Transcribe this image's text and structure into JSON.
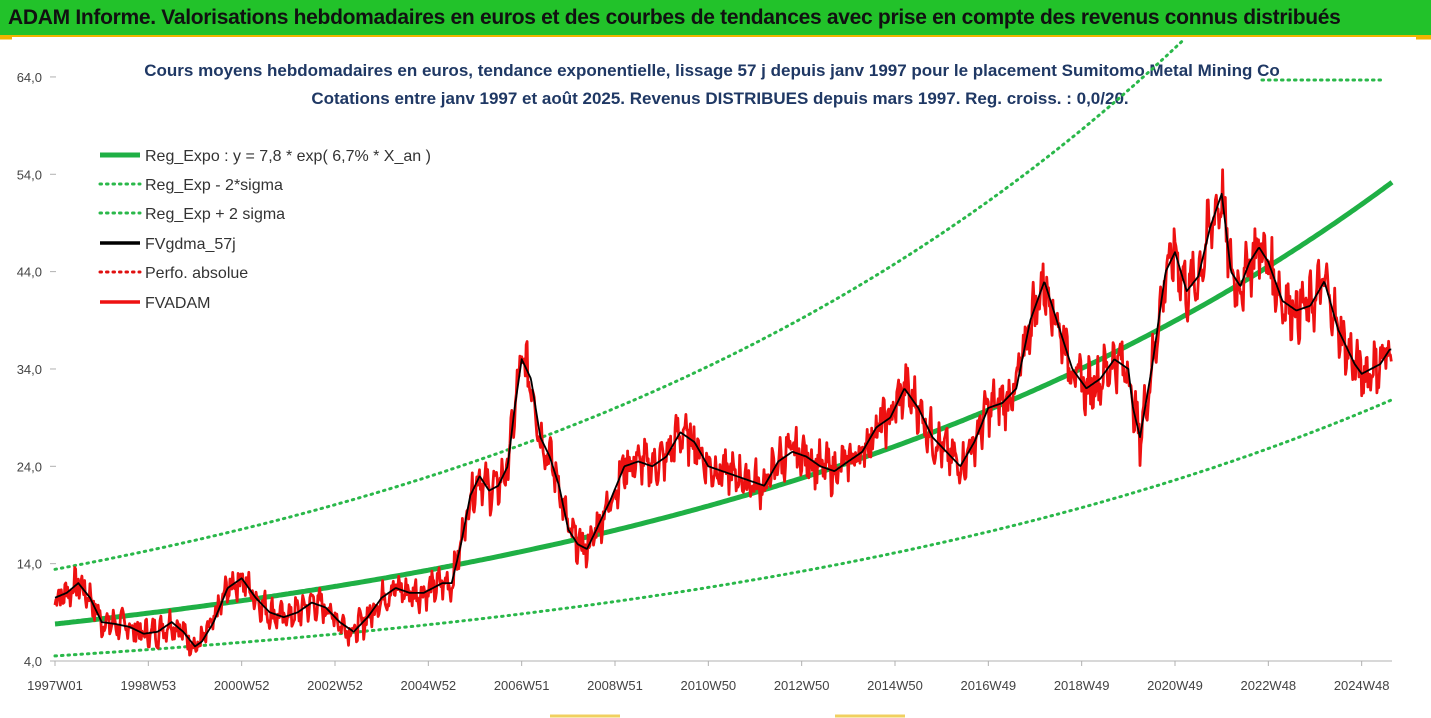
{
  "banner": {
    "title": "ADAM Informe. Valorisations hebdomadaires en euros et des courbes de tendances avec prise en compte des revenus connus distribués"
  },
  "chart_data": {
    "type": "line",
    "title": "Cours moyens hebdomadaires en euros, tendance exponentielle, lissage 57 j depuis janv 1997  pour le placement Sumitomo Metal Mining Co",
    "subtitle": "Cotations entre janv 1997 et août 2025.  Revenus DISTRIBUES depuis mars 1997. Reg. croiss. : 0,0/20.",
    "xlabel": "",
    "ylabel": "",
    "ylim": [
      4,
      68
    ],
    "xlim": [
      1997.0,
      2025.65
    ],
    "y_ticks": [
      "4,0",
      "14,0",
      "24,0",
      "34,0",
      "44,0",
      "54,0",
      "64,0"
    ],
    "x_ticks": [
      "1997W01",
      "1998W53",
      "2000W52",
      "2002W52",
      "2004W52",
      "2006W51",
      "2008W51",
      "2010W50",
      "2012W50",
      "2014W50",
      "2016W49",
      "2018W49",
      "2020W49",
      "2022W48",
      "2024W48"
    ],
    "x_tick_years": [
      1997.0,
      1999.0,
      2001.0,
      2003.0,
      2005.0,
      2007.0,
      2009.0,
      2011.0,
      2013.0,
      2015.0,
      2017.0,
      2019.0,
      2021.0,
      2023.0,
      2025.0
    ],
    "grid": false,
    "legend_position": "top-left",
    "trend": {
      "a": 7.8,
      "rate": 0.067,
      "sigma_factor_low": 0.58,
      "sigma_factor_high": 1.72
    },
    "series": [
      {
        "name": "Reg_Expo : y = 7,8 * exp( 6,7% *  X_an )",
        "color": "#1fb045",
        "style": "solid"
      },
      {
        "name": "Reg_Exp - 2*sigma",
        "color": "#2ab84a",
        "style": "dotted"
      },
      {
        "name": "Reg_Exp + 2 sigma",
        "color": "#2ab84a",
        "style": "dotted"
      },
      {
        "name": "FVgdma_57j",
        "color": "#000000",
        "style": "solid"
      },
      {
        "name": "Perfo. absolue",
        "color": "#e01010",
        "style": "dotted"
      },
      {
        "name": "FVADAM",
        "color": "#ee1111",
        "style": "solid"
      }
    ],
    "price_points": {
      "x": [
        1997.0,
        1997.25,
        1997.5,
        1997.75,
        1998.0,
        1998.3,
        1998.6,
        1998.9,
        1999.2,
        1999.5,
        1999.75,
        2000.0,
        2000.15,
        2000.4,
        2000.7,
        2001.0,
        2001.3,
        2001.6,
        2001.9,
        2002.2,
        2002.5,
        2002.8,
        2003.1,
        2003.4,
        2003.7,
        2004.0,
        2004.3,
        2004.6,
        2004.9,
        2005.1,
        2005.3,
        2005.5,
        2005.7,
        2005.9,
        2006.1,
        2006.3,
        2006.5,
        2006.7,
        2006.85,
        2007.0,
        2007.2,
        2007.4,
        2007.6,
        2007.8,
        2008.0,
        2008.2,
        2008.4,
        2008.6,
        2008.9,
        2009.2,
        2009.5,
        2009.8,
        2010.1,
        2010.4,
        2010.7,
        2011.0,
        2011.3,
        2011.6,
        2011.9,
        2012.2,
        2012.5,
        2012.8,
        2013.1,
        2013.4,
        2013.7,
        2014.0,
        2014.3,
        2014.6,
        2014.9,
        2015.2,
        2015.5,
        2015.8,
        2016.1,
        2016.4,
        2016.7,
        2017.0,
        2017.3,
        2017.6,
        2017.9,
        2018.2,
        2018.5,
        2018.8,
        2019.1,
        2019.4,
        2019.7,
        2020.0,
        2020.1,
        2020.25,
        2020.5,
        2020.8,
        2021.0,
        2021.25,
        2021.5,
        2021.75,
        2022.0,
        2022.2,
        2022.4,
        2022.6,
        2022.8,
        2023.0,
        2023.3,
        2023.6,
        2023.9,
        2024.2,
        2024.5,
        2024.7,
        2024.85,
        2025.0,
        2025.2,
        2025.4,
        2025.6
      ],
      "y": [
        10.5,
        11.0,
        12.0,
        10.5,
        8.0,
        7.8,
        7.5,
        6.8,
        7.0,
        8.0,
        7.0,
        5.5,
        6.0,
        8.0,
        11.5,
        12.5,
        10.5,
        9.0,
        8.5,
        9.0,
        10.0,
        9.5,
        8.0,
        7.0,
        8.5,
        10.5,
        11.5,
        11.0,
        11.0,
        11.5,
        12.0,
        12.0,
        16.0,
        21.0,
        23.0,
        21.5,
        22.0,
        24.0,
        30.0,
        35.0,
        33.0,
        27.0,
        25.0,
        22.0,
        17.5,
        16.0,
        15.5,
        17.5,
        20.5,
        24.0,
        24.5,
        24.0,
        25.0,
        27.5,
        26.5,
        24.0,
        23.5,
        23.0,
        22.5,
        22.0,
        24.5,
        25.5,
        25.0,
        24.0,
        23.5,
        24.5,
        25.5,
        28.0,
        29.0,
        32.0,
        30.0,
        27.0,
        25.5,
        24.0,
        26.5,
        30.0,
        30.5,
        32.0,
        39.0,
        43.0,
        38.5,
        34.0,
        32.0,
        33.0,
        35.0,
        34.0,
        30.0,
        27.0,
        34.0,
        44.0,
        46.0,
        42.0,
        43.5,
        48.5,
        52.0,
        44.0,
        42.5,
        45.0,
        46.5,
        45.0,
        41.0,
        40.0,
        40.5,
        43.0,
        38.0,
        36.0,
        34.5,
        33.5,
        34.0,
        34.5,
        36.0
      ]
    }
  }
}
